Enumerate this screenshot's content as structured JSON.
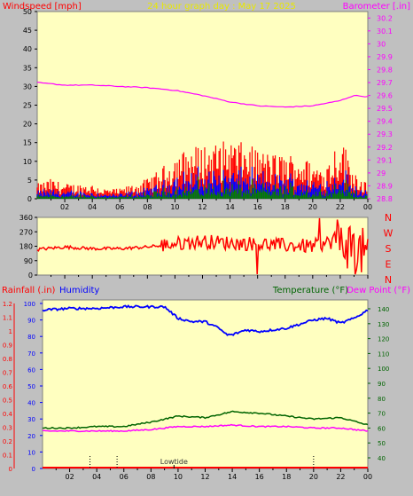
{
  "header": {
    "left_label": "Windspeed [mph]",
    "center_label": "24 hour graph day : May 17 2025",
    "right_label": "Barometer [.in]"
  },
  "colors": {
    "plot_bg": "#ffffc0",
    "wind_gust": "#ff0000",
    "wind_avg": "#0000ff",
    "wind_low": "#008000",
    "barometer": "#ff00ff",
    "direction": "#ff0000",
    "humidity": "#0000ff",
    "temperature": "#006400",
    "dewpoint": "#ff00ff",
    "rain": "#ff0000"
  },
  "time_ticks": [
    "02",
    "04",
    "06",
    "08",
    "10",
    "12",
    "14",
    "16",
    "18",
    "20",
    "22",
    "00"
  ],
  "top_chart": {
    "left_ticks": [
      "0",
      "5",
      "10",
      "15",
      "20",
      "25",
      "30",
      "35",
      "40",
      "45",
      "50"
    ],
    "right_ticks": [
      "28.8",
      "28.9",
      "29",
      "29.1",
      "29.2",
      "29.3",
      "29.4",
      "29.5",
      "29.6",
      "29.7",
      "29.8",
      "29.9",
      "30",
      "30.1",
      "30.2"
    ]
  },
  "dir_chart": {
    "ticks": [
      "0",
      "90",
      "180",
      "270",
      "360"
    ],
    "compass": [
      "N",
      "W",
      "S",
      "E",
      "N"
    ]
  },
  "bottom_chart": {
    "rain_label": "Rainfall (.in)",
    "humidity_label": "Humidity",
    "temp_label": "Temperature (°F)",
    "dew_label": "Dew Point (°F)",
    "rain_ticks": [
      "0",
      "0.1",
      "0.2",
      "0.3",
      "0.4",
      "0.5",
      "0.6",
      "0.7",
      "0.8",
      "0.9",
      "1",
      "1.1",
      "1.2"
    ],
    "humidity_ticks": [
      "0",
      "10",
      "20",
      "30",
      "40",
      "50",
      "60",
      "70",
      "80",
      "90",
      "100"
    ],
    "temp_ticks": [
      "40",
      "50",
      "60",
      "70",
      "80",
      "90",
      "100",
      "110",
      "120",
      "130",
      "140"
    ],
    "annotation": "Lowtide"
  },
  "chart_data": [
    {
      "type": "line",
      "title": "24 hour graph day : May 17 2025",
      "x_unit": "hour",
      "series": [
        {
          "name": "Windspeed [mph]",
          "axis": "left",
          "ylim": [
            0,
            50
          ],
          "x": [
            0,
            1,
            2,
            3,
            4,
            5,
            6,
            7,
            8,
            9,
            10,
            11,
            12,
            13,
            14,
            15,
            16,
            17,
            18,
            19,
            20,
            21,
            22,
            23,
            24
          ],
          "values": [
            3,
            4,
            3,
            3,
            3,
            2,
            2,
            3,
            4,
            6,
            9,
            10,
            11,
            11,
            12,
            11,
            10,
            9,
            9,
            9,
            7,
            7,
            13,
            6,
            3
          ]
        },
        {
          "name": "Barometer [.in]",
          "axis": "right",
          "ylim": [
            28.8,
            30.25
          ],
          "x": [
            0,
            2,
            4,
            6,
            8,
            10,
            12,
            14,
            16,
            18,
            20,
            22,
            23,
            24
          ],
          "values": [
            29.7,
            29.68,
            29.68,
            29.67,
            29.66,
            29.64,
            29.6,
            29.55,
            29.52,
            29.51,
            29.52,
            29.56,
            29.6,
            29.59
          ]
        }
      ]
    },
    {
      "type": "scatter",
      "title": "",
      "ylim": [
        0,
        360
      ],
      "series": [
        {
          "name": "",
          "x": [
            0,
            2,
            4,
            6,
            8,
            10,
            12,
            14,
            16,
            18,
            20,
            22,
            24
          ],
          "values": [
            160,
            175,
            165,
            165,
            175,
            195,
            210,
            200,
            195,
            185,
            180,
            220,
            120
          ]
        }
      ]
    },
    {
      "type": "line",
      "title": "",
      "series": [
        {
          "name": "Humidity",
          "axis": "humidity",
          "ylim": [
            0,
            100
          ],
          "x": [
            0,
            2,
            4,
            6,
            8,
            9,
            10,
            11,
            12,
            13,
            13.6,
            14,
            15,
            16,
            18,
            20,
            21,
            22,
            23,
            24
          ],
          "values": [
            96,
            97,
            97,
            98,
            98,
            98,
            91,
            89,
            89,
            85,
            81,
            81,
            84,
            83,
            85,
            90,
            91,
            88,
            91,
            96
          ]
        },
        {
          "name": "Temperature (°F)",
          "axis": "temp",
          "ylim": [
            40,
            140
          ],
          "x": [
            0,
            2,
            4,
            6,
            8,
            10,
            12,
            14,
            16,
            18,
            20,
            22,
            24
          ],
          "values": [
            60,
            60,
            61,
            61,
            64,
            68,
            67,
            71,
            70,
            68,
            66,
            67,
            62
          ]
        },
        {
          "name": "Dew Point (°F)",
          "axis": "temp",
          "ylim": [
            40,
            140
          ],
          "x": [
            0,
            2,
            4,
            6,
            8,
            10,
            12,
            14,
            16,
            18,
            20,
            22,
            24
          ],
          "values": [
            58,
            58,
            58,
            58,
            59,
            61,
            61,
            62,
            61,
            61,
            60,
            60,
            58
          ]
        },
        {
          "name": "Rainfall (.in)",
          "axis": "rain",
          "ylim": [
            0,
            1.2
          ],
          "x": [
            0,
            24
          ],
          "values": [
            0,
            0
          ]
        }
      ]
    }
  ]
}
